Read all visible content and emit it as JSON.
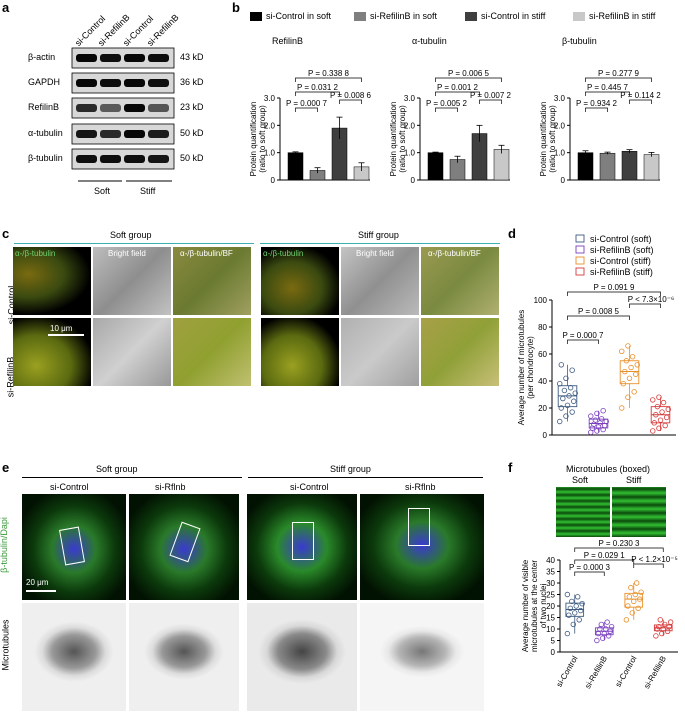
{
  "panel_labels": [
    "a",
    "b",
    "c",
    "d",
    "e",
    "f"
  ],
  "panel_a": {
    "lanes": [
      "si-Control",
      "si-RefilinB",
      "si-Control",
      "si-RefilinB"
    ],
    "bands": [
      {
        "name": "β-actin",
        "kd": "43 kD"
      },
      {
        "name": "GAPDH",
        "kd": "36 kD"
      },
      {
        "name": "RefilinB",
        "kd": "23 kD"
      },
      {
        "name": "α-tubulin",
        "kd": "50 kD"
      },
      {
        "name": "β-tubulin",
        "kd": "50 kD"
      }
    ],
    "groups": [
      "Soft",
      "Stiff"
    ]
  },
  "panel_b": {
    "legend": [
      "si-Control in soft",
      "si-RefilinB in soft",
      "si-Control in stiff",
      "si-RefilinB in stiff"
    ],
    "colors": [
      "#000000",
      "#7f7f7f",
      "#3f3f3f",
      "#c8c8c8"
    ]
  },
  "chart_data": [
    {
      "type": "bar",
      "title": "RefilinB",
      "ylabel": "Protein quantification\n(ratio to soft group)",
      "ylim": [
        0,
        3
      ],
      "yticks": [
        "0",
        "1.0",
        "2.0",
        "3.0"
      ],
      "values": [
        1.0,
        0.35,
        1.9,
        0.48
      ],
      "errors": [
        0.03,
        0.1,
        0.4,
        0.15
      ],
      "annotations": [
        {
          "text": "P = 0.000 7"
        },
        {
          "text": "P = 0.031 2"
        },
        {
          "text": "P = 0.338 8"
        },
        {
          "text": "P = 0.008 6"
        }
      ]
    },
    {
      "type": "bar",
      "title": "α-tubulin",
      "ylabel": "Protein quantification\n(ratio to soft group)",
      "ylim": [
        0,
        3
      ],
      "yticks": [
        "0",
        "1.0",
        "2.0",
        "3.0"
      ],
      "values": [
        1.0,
        0.75,
        1.7,
        1.12
      ],
      "errors": [
        0.02,
        0.12,
        0.3,
        0.15
      ],
      "annotations": [
        {
          "text": "P = 0.005 2"
        },
        {
          "text": "P = 0.001 2"
        },
        {
          "text": "P = 0.006 5"
        },
        {
          "text": "P = 0.007 2"
        }
      ]
    },
    {
      "type": "bar",
      "title": "β-tubulin",
      "ylabel": "Protein quantification\n(ratio to soft group)",
      "ylim": [
        0,
        3
      ],
      "yticks": [
        "0",
        "1.0",
        "2.0",
        "3.0"
      ],
      "values": [
        1.0,
        0.98,
        1.05,
        0.93
      ],
      "errors": [
        0.07,
        0.04,
        0.06,
        0.08
      ],
      "annotations": [
        {
          "text": "P = 0.934 2"
        },
        {
          "text": "P = 0.445 7"
        },
        {
          "text": "P = 0.277 9"
        },
        {
          "text": "P = 0.114 2"
        }
      ]
    },
    {
      "type": "scatter",
      "ylabel": "Average number of microtubules\n(per chondrocyte)",
      "ylim": [
        0,
        100
      ],
      "yticks": [
        "0",
        "20",
        "40",
        "60",
        "80",
        "100"
      ],
      "legend": [
        "si-Control (soft)",
        "si-RefilinB (soft)",
        "si-Control (stiff)",
        "si-RefilinB (stiff)"
      ],
      "colors": [
        "#3d5a80",
        "#7b3fbf",
        "#e8902a",
        "#d63a3a"
      ],
      "series": [
        {
          "values": [
            10,
            14,
            17,
            20,
            22,
            25,
            27,
            29,
            31,
            33,
            35,
            38,
            42,
            48,
            52
          ]
        },
        {
          "values": [
            2,
            3,
            4,
            5,
            6,
            7,
            8,
            9,
            10,
            11,
            12,
            14,
            16,
            18
          ]
        },
        {
          "values": [
            20,
            28,
            32,
            38,
            42,
            45,
            47,
            50,
            52,
            55,
            58,
            62,
            66
          ]
        },
        {
          "values": [
            3,
            5,
            7,
            9,
            11,
            13,
            15,
            17,
            19,
            21,
            24,
            26,
            28
          ]
        }
      ],
      "annotations": [
        {
          "text": "P = 0.000 7"
        },
        {
          "text": "P = 0.008 5"
        },
        {
          "text": "P = 0.091 9"
        },
        {
          "text": "P < 7.3×10⁻⁶"
        }
      ]
    },
    {
      "type": "scatter",
      "ylabel": "Average number of visible\nmicrotubules at the center\nof two nuclei",
      "ylim": [
        0,
        40
      ],
      "yticks": [
        "0",
        "5",
        "10",
        "15",
        "20",
        "25",
        "30",
        "35",
        "40"
      ],
      "categories": [
        "si-Control",
        "si-RefilinB",
        "si-Control",
        "si-RefilinB"
      ],
      "colors": [
        "#3d5a80",
        "#7b3fbf",
        "#e8902a",
        "#d63a3a"
      ],
      "series": [
        {
          "values": [
            8,
            12,
            14,
            16,
            17,
            18,
            19,
            20,
            21,
            22,
            24,
            25
          ]
        },
        {
          "values": [
            5,
            6,
            7,
            8,
            8,
            9,
            10,
            10,
            11,
            12,
            13
          ]
        },
        {
          "values": [
            14,
            17,
            19,
            20,
            22,
            23,
            24,
            25,
            26,
            28,
            30
          ]
        },
        {
          "values": [
            7,
            8,
            9,
            10,
            10,
            11,
            11,
            12,
            13,
            14
          ]
        }
      ],
      "annotations": [
        {
          "text": "P = 0.000 3"
        },
        {
          "text": "P = 0.029 1"
        },
        {
          "text": "P = 0.230 3"
        },
        {
          "text": "P < 1.2×10⁻⁵"
        }
      ]
    }
  ],
  "panel_c": {
    "group_soft": "Soft group",
    "group_stiff": "Stiff group",
    "row_labels": [
      "si-Control",
      "si-RefilinB"
    ],
    "col_soft": [
      "α-/β-tubulin",
      "Bright field",
      "α-/β-tubulin/BF"
    ],
    "col_stiff": [
      "α-/β-tubulin",
      "Bright field",
      "α-/β-tubulin/BF"
    ],
    "scale": "10 μm"
  },
  "panel_e": {
    "group_soft": "Soft group",
    "group_stiff": "Stiff group",
    "cols": [
      "si-Control",
      "si-Rflnb",
      "si-Control",
      "si-Rflnb"
    ],
    "row_labels": [
      "β-tubulin/Dapi",
      "Microtubules"
    ],
    "scale": "20 μm"
  },
  "panel_f": {
    "title": "Microtubules (boxed)",
    "cols": [
      "Soft",
      "Stiff"
    ]
  }
}
